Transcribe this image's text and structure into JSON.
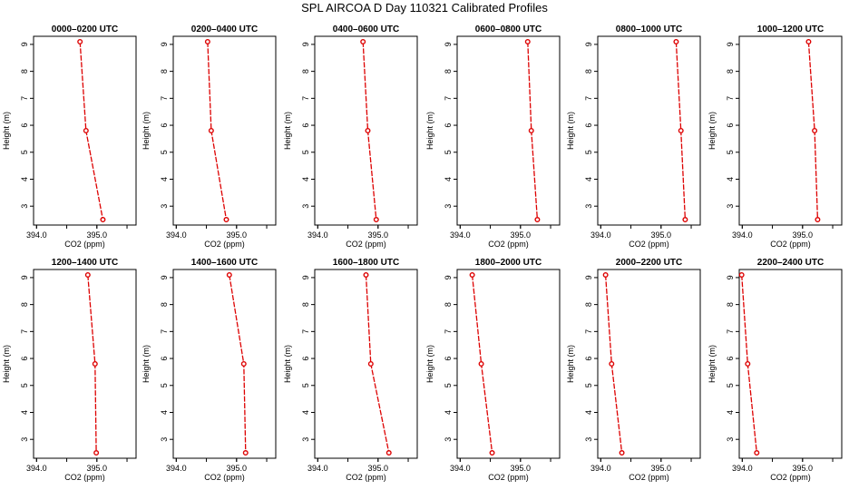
{
  "title": "SPL AIRCOA D  Day 110321  Calibrated Profiles",
  "series_color": "#dd0000",
  "chart_data": {
    "type": "line",
    "title": "SPL AIRCOA D  Day 110321  Calibrated Profiles",
    "xlabel": "CO2 (ppm)",
    "ylabel": "Height (m)",
    "xlim": [
      393.95,
      395.65
    ],
    "ylim": [
      2.3,
      9.3
    ],
    "xticks": [
      "394.0",
      "395.0"
    ],
    "yticks": [
      "3",
      "4",
      "5",
      "6",
      "7",
      "8",
      "9"
    ],
    "grid": false,
    "heights": [
      9.1,
      5.8,
      2.5
    ],
    "panels": [
      {
        "title": "0000–0200 UTC",
        "co2": [
          394.72,
          394.82,
          395.1
        ]
      },
      {
        "title": "0200–0400 UTC",
        "co2": [
          394.52,
          394.58,
          394.83
        ]
      },
      {
        "title": "0400–0600 UTC",
        "co2": [
          394.75,
          394.83,
          394.97
        ]
      },
      {
        "title": "0600–0800 UTC",
        "co2": [
          395.12,
          395.18,
          395.28
        ]
      },
      {
        "title": "0800–1000 UTC",
        "co2": [
          395.25,
          395.33,
          395.4
        ]
      },
      {
        "title": "1000–1200 UTC",
        "co2": [
          395.1,
          395.2,
          395.25
        ]
      },
      {
        "title": "1200–1400 UTC",
        "co2": [
          394.85,
          394.97,
          394.99
        ]
      },
      {
        "title": "1400–1600 UTC",
        "co2": [
          394.88,
          395.12,
          395.15
        ]
      },
      {
        "title": "1600–1800 UTC",
        "co2": [
          394.8,
          394.88,
          395.18
        ]
      },
      {
        "title": "1800–2000 UTC",
        "co2": [
          394.2,
          394.35,
          394.53
        ]
      },
      {
        "title": "2000–2200 UTC",
        "co2": [
          394.08,
          394.18,
          394.35
        ]
      },
      {
        "title": "2200–2400 UTC",
        "co2": [
          393.99,
          394.09,
          394.24
        ]
      }
    ]
  }
}
